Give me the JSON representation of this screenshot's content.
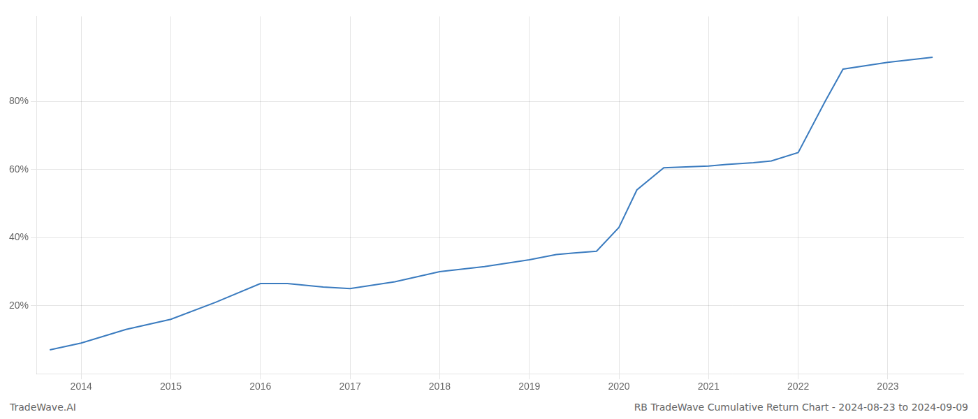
{
  "chart_data": {
    "type": "line",
    "x": [
      2013.65,
      2014.0,
      2014.5,
      2015.0,
      2015.5,
      2016.0,
      2016.3,
      2016.7,
      2017.0,
      2017.5,
      2018.0,
      2018.5,
      2019.0,
      2019.3,
      2019.5,
      2019.75,
      2020.0,
      2020.2,
      2020.5,
      2021.0,
      2021.2,
      2021.5,
      2021.7,
      2022.0,
      2022.3,
      2022.5,
      2023.0,
      2023.5
    ],
    "values": [
      7.0,
      9.0,
      13.0,
      16.0,
      21.0,
      26.5,
      26.5,
      25.5,
      25.0,
      27.0,
      30.0,
      31.5,
      33.5,
      35.0,
      35.5,
      36.0,
      43.0,
      54.0,
      60.5,
      61.0,
      61.5,
      62.0,
      62.5,
      65.0,
      80.0,
      89.5,
      91.5,
      93.0
    ],
    "color": "#3a7bbf",
    "xlim": [
      2013.5,
      2023.85
    ],
    "xticks": [
      2014,
      2015,
      2016,
      2017,
      2018,
      2019,
      2020,
      2021,
      2022,
      2023
    ],
    "ylim": [
      0,
      105
    ],
    "yticks": [
      {
        "value": 20,
        "label": "20%"
      },
      {
        "value": 40,
        "label": "40%"
      },
      {
        "value": 60,
        "label": "60%"
      },
      {
        "value": 80,
        "label": "80%"
      }
    ],
    "grid": true,
    "annotations": [
      "TradeWave.AI",
      "RB TradeWave Cumulative Return Chart - 2024-08-23 to 2024-09-09"
    ]
  }
}
